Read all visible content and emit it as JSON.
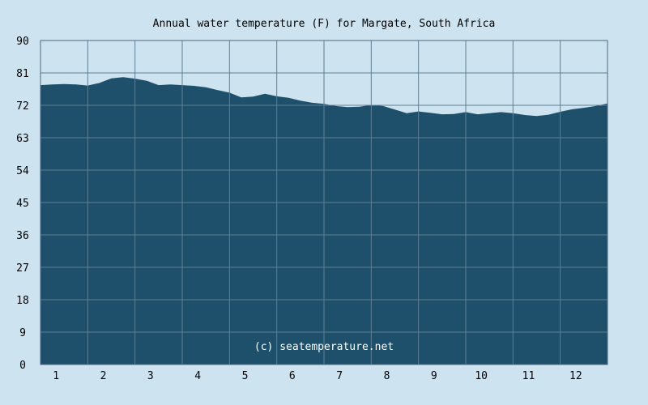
{
  "chart_data": {
    "type": "area",
    "title": "Annual water temperature (F) for Margate, South Africa",
    "watermark": "(c) seatemperature.net",
    "xlabel": "",
    "ylabel": "",
    "x_categories": [
      "1",
      "2",
      "3",
      "4",
      "5",
      "6",
      "7",
      "8",
      "9",
      "10",
      "11",
      "12"
    ],
    "yticks": [
      "0",
      "9",
      "18",
      "27",
      "36",
      "45",
      "54",
      "63",
      "72",
      "81",
      "90"
    ],
    "ylim": [
      0,
      90
    ],
    "xlim": [
      0,
      12
    ],
    "grid": true,
    "colors": {
      "background": "#cde3ef",
      "fill": "#1e4f6b",
      "grid": "#5f7f96",
      "frame": "#4a6a80"
    },
    "series": [
      {
        "x": [
          0,
          0.25,
          0.5,
          0.75,
          1,
          1.25,
          1.5,
          1.75,
          2,
          2.25,
          2.5,
          2.75,
          3,
          3.25,
          3.5,
          3.75,
          4,
          4.25,
          4.5,
          4.75,
          5,
          5.25,
          5.5,
          5.75,
          6,
          6.25,
          6.5,
          6.75,
          7,
          7.25,
          7.5,
          7.75,
          8,
          8.25,
          8.5,
          8.75,
          9,
          9.25,
          9.5,
          9.75,
          10,
          10.25,
          10.5,
          10.75,
          11,
          11.25,
          11.5,
          11.75,
          12
        ],
        "values": [
          77.6,
          77.8,
          77.9,
          77.8,
          77.5,
          78.2,
          79.5,
          79.8,
          79.4,
          78.8,
          77.6,
          77.8,
          77.6,
          77.4,
          77.0,
          76.2,
          75.5,
          74.2,
          74.4,
          75.2,
          74.5,
          74.1,
          73.3,
          72.7,
          72.4,
          71.8,
          71.5,
          71.6,
          72.1,
          71.8,
          70.8,
          69.8,
          70.3,
          69.9,
          69.5,
          69.6,
          70.1,
          69.5,
          69.8,
          70.1,
          69.8,
          69.3,
          69.0,
          69.4,
          70.2,
          70.9,
          71.3,
          71.8,
          72.5
        ]
      }
    ]
  }
}
